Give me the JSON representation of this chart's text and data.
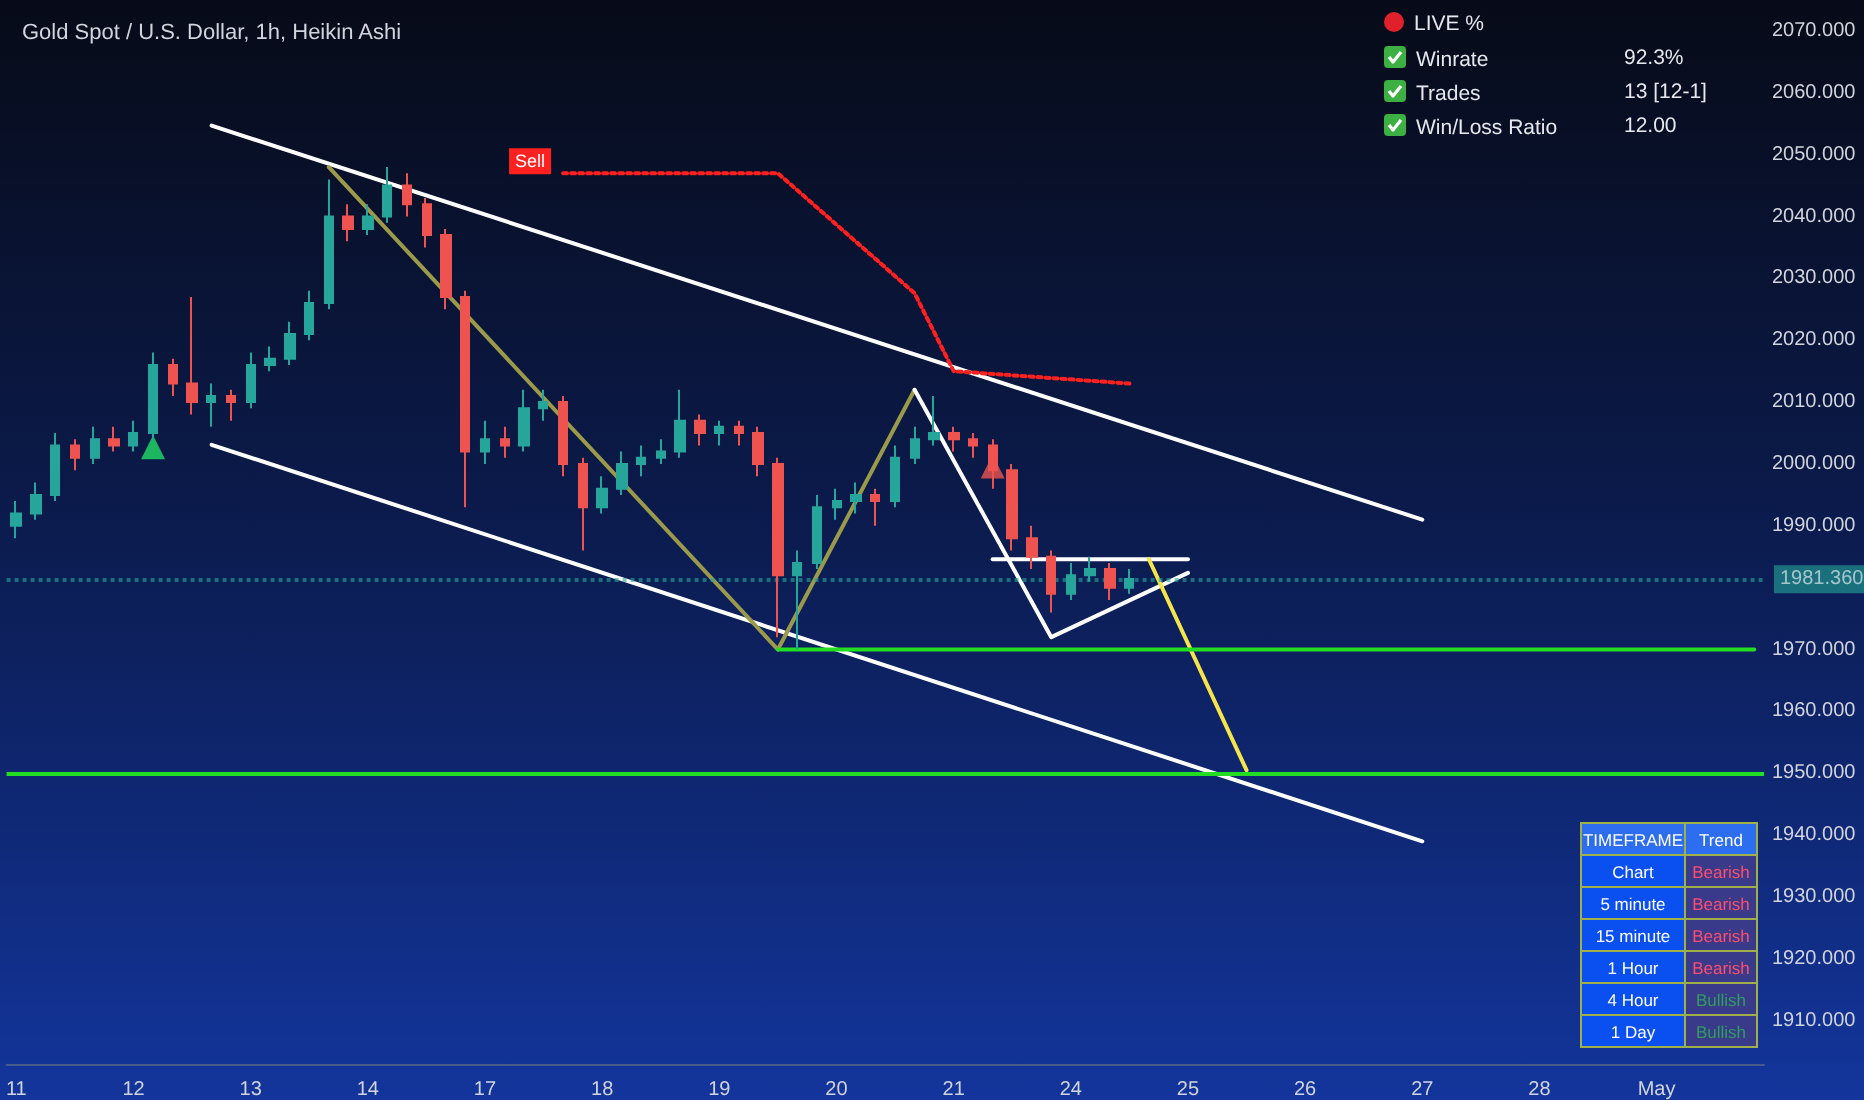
{
  "chart_data": [
    {
      "type": "candlestick",
      "title": "Gold Spot / U.S. Dollar, 1h, Heikin Ashi",
      "categories": [
        "11",
        null,
        null,
        null,
        null,
        null,
        "12",
        null,
        null,
        null,
        null,
        null,
        "13",
        null,
        null,
        null,
        null,
        null,
        "14",
        null,
        null,
        null,
        null,
        null,
        "17",
        null,
        null,
        null,
        null,
        null,
        "18",
        null,
        null,
        null,
        null,
        null,
        "19",
        null,
        null,
        null,
        null,
        null,
        "20",
        null,
        null,
        null,
        null,
        null,
        "21",
        null,
        null,
        null,
        null,
        null,
        "24",
        null,
        null,
        null,
        null,
        null,
        "25",
        null,
        null,
        null,
        null,
        null,
        "26",
        null,
        null,
        null,
        null,
        null,
        "27",
        null,
        null,
        null,
        null,
        null,
        "28",
        null,
        null,
        null,
        null,
        null,
        "May",
        null,
        null,
        null,
        null,
        null
      ],
      "ohlc": [
        [
          1990,
          1994,
          1988,
          1992
        ],
        [
          1992,
          1997,
          1991,
          1995
        ],
        [
          1995,
          2005,
          1994,
          2003
        ],
        [
          2003,
          2004,
          1999,
          2001
        ],
        [
          2001,
          2006,
          2000,
          2004
        ],
        [
          2004,
          2006,
          2002,
          2003
        ],
        [
          2003,
          2007,
          2002,
          2005
        ],
        [
          2005,
          2018,
          2004,
          2016
        ],
        [
          2016,
          2017,
          2011,
          2013
        ],
        [
          2013,
          2027,
          2008,
          2010
        ],
        [
          2010,
          2013,
          2006,
          2011
        ],
        [
          2011,
          2012,
          2007,
          2010
        ],
        [
          2010,
          2018,
          2009,
          2016
        ],
        [
          2016,
          2019,
          2015,
          2017
        ],
        [
          2017,
          2023,
          2016,
          2021
        ],
        [
          2021,
          2028,
          2020,
          2026
        ],
        [
          2026,
          2046,
          2025,
          2040
        ],
        [
          2040,
          2042,
          2036,
          2038
        ],
        [
          2038,
          2042,
          2037,
          2040
        ],
        [
          2040,
          2048,
          2039,
          2045
        ],
        [
          2045,
          2047,
          2040,
          2042
        ],
        [
          2042,
          2043,
          2035,
          2037
        ],
        [
          2037,
          2038,
          2025,
          2027
        ],
        [
          2027,
          2028,
          1993,
          2002
        ],
        [
          2002,
          2007,
          2000,
          2004
        ],
        [
          2004,
          2006,
          2001,
          2003
        ],
        [
          2003,
          2012,
          2002,
          2009
        ],
        [
          2009,
          2012,
          2007,
          2010
        ],
        [
          2010,
          2011,
          1998,
          2000
        ],
        [
          2000,
          2001,
          1986,
          1993
        ],
        [
          1993,
          1998,
          1992,
          1996
        ],
        [
          1996,
          2002,
          1995,
          2000
        ],
        [
          2000,
          2003,
          1998,
          2001
        ],
        [
          2001,
          2004,
          2000,
          2002
        ],
        [
          2002,
          2012,
          2001,
          2007
        ],
        [
          2007,
          2008,
          2003,
          2005
        ],
        [
          2005,
          2007,
          2003,
          2006
        ],
        [
          2006,
          2007,
          2003,
          2005
        ],
        [
          2005,
          2006,
          1998,
          2000
        ],
        [
          2000,
          2001,
          1972,
          1982
        ],
        [
          1982,
          1986,
          1970,
          1984
        ],
        [
          1984,
          1995,
          1983,
          1993
        ],
        [
          1993,
          1996,
          1991,
          1994
        ],
        [
          1994,
          1997,
          1992,
          1995
        ],
        [
          1995,
          1996,
          1990,
          1994
        ],
        [
          1994,
          2003,
          1993,
          2001
        ],
        [
          2001,
          2006,
          2000,
          2004
        ],
        [
          2004,
          2011,
          2003,
          2005
        ],
        [
          2005,
          2006,
          2002,
          2004
        ],
        [
          2004,
          2005,
          2001,
          2003
        ],
        [
          2003,
          2004,
          1996,
          1999
        ],
        [
          1999,
          2000,
          1986,
          1988
        ],
        [
          1988,
          1990,
          1983,
          1985
        ],
        [
          1985,
          1986,
          1976,
          1979
        ],
        [
          1979,
          1984,
          1978,
          1982
        ],
        [
          1982,
          1985,
          1981,
          1983
        ],
        [
          1983,
          1984,
          1978,
          1980
        ],
        [
          1980,
          1983,
          1979,
          1981.4
        ],
        null,
        null,
        null,
        null,
        null,
        null,
        null,
        null,
        null,
        null,
        null,
        null,
        null,
        null,
        null,
        null,
        null,
        null,
        null,
        null,
        null,
        null,
        null,
        null,
        null,
        null,
        null,
        null,
        null,
        null,
        null,
        null
      ],
      "colors": [
        "#26a69a",
        "#26a69a",
        "#26a69a",
        "#ef5350",
        "#26a69a",
        "#ef5350",
        "#26a69a",
        "#26a69a",
        "#ef5350",
        "#ef5350",
        "#26a69a",
        "#ef5350",
        "#26a69a",
        "#26a69a",
        "#26a69a",
        "#26a69a",
        "#26a69a",
        "#ef5350",
        "#26a69a",
        "#26a69a",
        "#ef5350",
        "#ef5350",
        "#ef5350",
        "#ef5350",
        "#26a69a",
        "#ef5350",
        "#26a69a",
        "#26a69a",
        "#ef5350",
        "#ef5350",
        "#26a69a",
        "#26a69a",
        "#26a69a",
        "#26a69a",
        "#26a69a",
        "#ef5350",
        "#26a69a",
        "#ef5350",
        "#ef5350",
        "#ef5350",
        "#26a69a",
        "#26a69a",
        "#26a69a",
        "#26a69a",
        "#ef5350",
        "#26a69a",
        "#26a69a",
        "#26a69a",
        "#ef5350",
        "#ef5350",
        "#ef5350",
        "#ef5350",
        "#ef5350",
        "#ef5350",
        "#26a69a",
        "#26a69a",
        "#ef5350",
        "#26a69a",
        null,
        null,
        null,
        null,
        null,
        null,
        null,
        null,
        null,
        null,
        null,
        null,
        null,
        null,
        null,
        null,
        null,
        null,
        null,
        null,
        null,
        null,
        null,
        null,
        null,
        null,
        null,
        null,
        null,
        null,
        null,
        null
      ],
      "series": [
        {
          "type": "line",
          "color": "#ffffff",
          "values": [
            null,
            null,
            null,
            null,
            null,
            null,
            null,
            null,
            null,
            null,
            2054.7,
            null,
            null,
            null,
            null,
            null,
            null,
            null,
            null,
            null,
            null,
            null,
            null,
            null,
            null,
            null,
            null,
            null,
            null,
            null,
            null,
            null,
            null,
            null,
            null,
            null,
            null,
            null,
            null,
            null,
            null,
            null,
            null,
            null,
            null,
            null,
            null,
            null,
            null,
            null,
            null,
            null,
            null,
            null,
            null,
            null,
            null,
            null,
            null,
            null,
            null,
            null,
            null,
            null,
            null,
            null,
            null,
            null,
            null,
            null,
            null,
            null,
            1991.0,
            null,
            null,
            null,
            null,
            null,
            null,
            null,
            null,
            null,
            null,
            null,
            null,
            null,
            null,
            null,
            null,
            null
          ]
        },
        {
          "type": "line",
          "color": "#ffffff",
          "values": [
            null,
            null,
            null,
            null,
            null,
            null,
            null,
            null,
            null,
            null,
            2003.1,
            null,
            null,
            null,
            null,
            null,
            null,
            null,
            null,
            null,
            null,
            null,
            null,
            null,
            null,
            null,
            null,
            null,
            null,
            null,
            null,
            null,
            null,
            null,
            null,
            null,
            null,
            null,
            null,
            null,
            null,
            null,
            null,
            null,
            null,
            null,
            null,
            null,
            null,
            null,
            null,
            null,
            null,
            null,
            null,
            null,
            null,
            null,
            null,
            null,
            null,
            null,
            null,
            null,
            null,
            null,
            null,
            null,
            null,
            null,
            null,
            null,
            1939.0,
            null,
            null,
            null,
            null,
            null,
            null,
            null,
            null,
            null,
            null,
            null,
            null,
            null,
            null,
            null,
            null,
            null
          ]
        },
        {
          "type": "line",
          "color": "#9a9a4a",
          "values": [
            null,
            null,
            null,
            null,
            null,
            null,
            null,
            null,
            null,
            null,
            null,
            null,
            null,
            null,
            null,
            null,
            2048,
            null,
            null,
            null,
            null,
            null,
            null,
            null,
            null,
            null,
            null,
            null,
            null,
            null,
            null,
            null,
            null,
            null,
            null,
            null,
            null,
            null,
            null,
            1970,
            null,
            null,
            null,
            null,
            null,
            null,
            2012,
            null,
            null,
            null,
            null,
            null,
            null,
            null,
            null,
            null,
            null,
            null,
            null,
            null,
            null,
            null,
            null,
            null,
            null,
            null,
            null,
            null,
            null,
            null,
            null,
            null,
            null,
            null,
            null,
            null,
            null,
            null,
            null,
            null,
            null,
            null,
            null,
            null,
            null,
            null,
            null,
            null,
            null,
            null
          ]
        },
        {
          "type": "line",
          "color": "#ffffff",
          "values": [
            null,
            null,
            null,
            null,
            null,
            null,
            null,
            null,
            null,
            null,
            null,
            null,
            null,
            null,
            null,
            null,
            null,
            null,
            null,
            null,
            null,
            null,
            null,
            null,
            null,
            null,
            null,
            null,
            null,
            null,
            null,
            null,
            null,
            null,
            null,
            null,
            null,
            null,
            null,
            null,
            null,
            null,
            null,
            null,
            null,
            null,
            2012,
            null,
            null,
            null,
            null,
            null,
            null,
            1972,
            null,
            null,
            null,
            null,
            null,
            null,
            1982.4,
            null,
            null,
            null,
            null,
            null,
            null,
            null,
            null,
            null,
            null,
            null,
            null,
            null,
            null,
            null,
            null,
            null,
            null,
            null,
            null,
            null,
            null,
            null,
            null,
            null,
            null,
            null,
            null,
            null
          ]
        },
        {
          "type": "line",
          "color": "#ffffff",
          "values": [
            null,
            null,
            null,
            null,
            null,
            null,
            null,
            null,
            null,
            null,
            null,
            null,
            null,
            null,
            null,
            null,
            null,
            null,
            null,
            null,
            null,
            null,
            null,
            null,
            null,
            null,
            null,
            null,
            null,
            null,
            null,
            null,
            null,
            null,
            null,
            null,
            null,
            null,
            null,
            null,
            null,
            null,
            null,
            null,
            null,
            null,
            null,
            null,
            null,
            null,
            1984.6,
            null,
            null,
            null,
            null,
            null,
            null,
            null,
            null,
            null,
            1984.6,
            null,
            null,
            null,
            null,
            null,
            null,
            null,
            null,
            null,
            null,
            null,
            null,
            null,
            null,
            null,
            null,
            null,
            null,
            null,
            null,
            null,
            null,
            null,
            null,
            null,
            null,
            null,
            null,
            null
          ]
        },
        {
          "type": "line",
          "color": "#f5e44a",
          "values": [
            null,
            null,
            null,
            null,
            null,
            null,
            null,
            null,
            null,
            null,
            null,
            null,
            null,
            null,
            null,
            null,
            null,
            null,
            null,
            null,
            null,
            null,
            null,
            null,
            null,
            null,
            null,
            null,
            null,
            null,
            null,
            null,
            null,
            null,
            null,
            null,
            null,
            null,
            null,
            null,
            null,
            null,
            null,
            null,
            null,
            null,
            null,
            null,
            null,
            null,
            null,
            null,
            null,
            null,
            null,
            null,
            null,
            null,
            1984.6,
            null,
            null,
            null,
            null,
            1950.5,
            null,
            null,
            null,
            null,
            null,
            null,
            null,
            null,
            null,
            null,
            null,
            null,
            null,
            null,
            null,
            null,
            null,
            null,
            null,
            null,
            null,
            null,
            null,
            null,
            null,
            null
          ]
        },
        {
          "type": "line",
          "name": "Sell",
          "color": "#ff2020",
          "line_style": "dotted",
          "values": [
            null,
            null,
            null,
            null,
            null,
            null,
            null,
            null,
            null,
            null,
            null,
            null,
            null,
            null,
            null,
            null,
            null,
            null,
            null,
            null,
            null,
            null,
            null,
            null,
            null,
            null,
            null,
            null,
            2047,
            null,
            null,
            null,
            null,
            null,
            null,
            null,
            null,
            null,
            null,
            2047,
            null,
            null,
            null,
            null,
            null,
            null,
            2027.6,
            null,
            2015,
            null,
            null,
            null,
            null,
            null,
            null,
            null,
            null,
            2013,
            null,
            null,
            null,
            null,
            null,
            null,
            null,
            null,
            null,
            null,
            null,
            null,
            null,
            null,
            null,
            null,
            null,
            null,
            null,
            null,
            null,
            null,
            null,
            null,
            null,
            null,
            null,
            null,
            null,
            null,
            null,
            null
          ]
        },
        {
          "type": "line",
          "color": "#22dd22",
          "values": [
            null,
            null,
            null,
            null,
            null,
            null,
            null,
            null,
            null,
            null,
            null,
            null,
            null,
            null,
            null,
            null,
            null,
            null,
            null,
            null,
            null,
            null,
            null,
            null,
            null,
            null,
            null,
            null,
            null,
            null,
            null,
            null,
            null,
            null,
            null,
            null,
            null,
            null,
            null,
            1970,
            null,
            null,
            null,
            null,
            null,
            null,
            null,
            null,
            null,
            null,
            null,
            null,
            null,
            null,
            null,
            null,
            null,
            null,
            null,
            null,
            null,
            null,
            null,
            null,
            null,
            null,
            null,
            null,
            null,
            null,
            null,
            null,
            null,
            null,
            null,
            null,
            null,
            null,
            null,
            null,
            null,
            null,
            null,
            null,
            null,
            null,
            null,
            null,
            null,
            1970
          ]
        },
        {
          "type": "scatter",
          "color": "#22dd66",
          "marker": "triangle",
          "values": [
            null,
            null,
            null,
            null,
            null,
            null,
            null,
            2002.7,
            null,
            null,
            null,
            null,
            null,
            null,
            null,
            null,
            null,
            null,
            null,
            null,
            null,
            null,
            null,
            null,
            null,
            null,
            null,
            null,
            null,
            null,
            null,
            null,
            null,
            null,
            null,
            null,
            null,
            null,
            null,
            null,
            null,
            null,
            null,
            null,
            null,
            null,
            null,
            null,
            null,
            null,
            null,
            null,
            null,
            null,
            null,
            null,
            null,
            null,
            null,
            null,
            null,
            null,
            null,
            null,
            null,
            null,
            null,
            null,
            null,
            null,
            null,
            null,
            null,
            null,
            null,
            null,
            null,
            null,
            null,
            null,
            null,
            null,
            null,
            null,
            null,
            null,
            null,
            null,
            null,
            null
          ]
        },
        {
          "type": "scatter",
          "color": "#ef5350",
          "marker": "triangle",
          "values": [
            null,
            null,
            null,
            null,
            null,
            null,
            null,
            null,
            null,
            null,
            null,
            null,
            null,
            null,
            null,
            null,
            null,
            null,
            null,
            null,
            null,
            null,
            null,
            null,
            null,
            null,
            null,
            null,
            null,
            null,
            null,
            null,
            null,
            null,
            null,
            null,
            null,
            null,
            null,
            null,
            null,
            null,
            null,
            null,
            null,
            null,
            null,
            null,
            null,
            null,
            1999.6,
            null,
            null,
            null,
            null,
            null,
            null,
            null,
            null,
            null,
            null,
            null,
            null,
            null,
            null,
            null,
            null,
            null,
            null,
            null,
            null,
            null,
            null,
            null,
            null,
            null,
            null,
            null,
            null,
            null,
            null,
            null,
            null,
            null,
            null,
            null,
            null,
            null,
            null,
            null
          ]
        }
      ],
      "ref_lines": [
        {
          "axis": "y",
          "value": 1950,
          "color": "#22dd22"
        },
        {
          "axis": "y",
          "value": 1981.36,
          "label": "1981.360",
          "color": "#26a69a",
          "line_style": "dotted"
        }
      ],
      "ylim": [
        1903,
        2075
      ],
      "yticks": [
        {
          "value": 1910,
          "label": "1910.000"
        },
        {
          "value": 1920,
          "label": "1920.000"
        },
        {
          "value": 1930,
          "label": "1930.000"
        },
        {
          "value": 1940,
          "label": "1940.000"
        },
        {
          "value": 1950,
          "label": "1950.000"
        },
        {
          "value": 1960,
          "label": "1960.000"
        },
        {
          "value": 1970,
          "label": "1970.000"
        },
        {
          "value": 1990,
          "label": "1990.000"
        },
        {
          "value": 2000,
          "label": "2000.000"
        },
        {
          "value": 2010,
          "label": "2010.000"
        },
        {
          "value": 2020,
          "label": "2020.000"
        },
        {
          "value": 2030,
          "label": "2030.000"
        },
        {
          "value": 2040,
          "label": "2040.000"
        },
        {
          "value": 2050,
          "label": "2050.000"
        },
        {
          "value": 2060,
          "label": "2060.000"
        },
        {
          "value": 2070,
          "label": "2070.000"
        }
      ]
    },
    {
      "type": "other",
      "title": "LIVE %",
      "cell_labels": [
        [
          "Winrate",
          "92.3%"
        ],
        [
          "Trades",
          "13 [12-1]"
        ],
        [
          "Win/Loss Ratio",
          "12.00"
        ]
      ]
    },
    {
      "type": "other",
      "cell_labels": [
        [
          "TIMEFRAME",
          "Trend"
        ],
        [
          "Chart",
          "Bearish"
        ],
        [
          "5 minute",
          "Bearish"
        ],
        [
          "15 minute",
          "Bearish"
        ],
        [
          "1 Hour",
          "Bearish"
        ],
        [
          "4 Hour",
          "Bullish"
        ],
        [
          "1 Day",
          "Bullish"
        ]
      ],
      "colors": [
        "#ffffff",
        "#ff4d6d",
        "#ff4d6d",
        "#ff4d6d",
        "#ff4d6d",
        "#2e9e5e",
        "#2e9e5e"
      ]
    }
  ]
}
